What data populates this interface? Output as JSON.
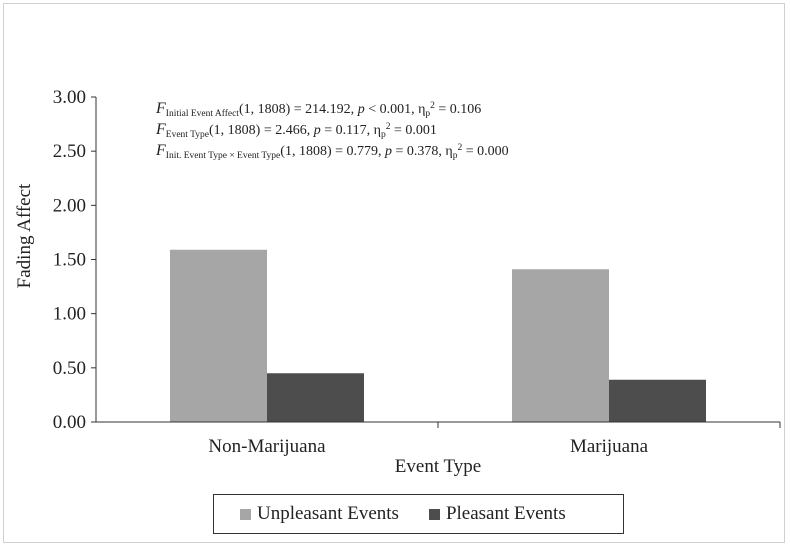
{
  "chart_data": {
    "type": "bar",
    "ylabel": "Fading Affect",
    "xlabel": "Event Type",
    "ylim": [
      0,
      3
    ],
    "yticks": [
      "0.00",
      "0.50",
      "1.00",
      "1.50",
      "2.00",
      "2.50",
      "3.00"
    ],
    "ytick_values": [
      0,
      0.5,
      1,
      1.5,
      2,
      2.5,
      3
    ],
    "categories": [
      "Non-Marijuana",
      "Marijuana"
    ],
    "series": [
      {
        "name": "Unpleasant Events",
        "values": [
          1.59,
          1.41
        ],
        "color": "#a6a6a6"
      },
      {
        "name": "Pleasant Events",
        "values": [
          0.45,
          0.39
        ],
        "color": "#4d4d4d"
      }
    ],
    "grid": false,
    "legend": "bottom",
    "annotations": [
      {
        "f": "F",
        "sub": "Initial Event Affect",
        "text": "(1, 1808) = 214.192, ",
        "p": "p",
        "ptext": " < 0.001, η",
        "psub": "p",
        "sup": "2",
        "end": " = 0.106"
      },
      {
        "f": "F",
        "sub": "Event Type",
        "text": "(1, 1808) = 2.466, ",
        "p": "p",
        "ptext": " = 0.117, η",
        "psub": "p",
        "sup": "2",
        "end": " = 0.001"
      },
      {
        "f": "F",
        "sub": "Init. Event Type × Event Type",
        "text": "(1, 1808) =  0.779, ",
        "p": "p",
        "ptext": " = 0.378, η",
        "psub": "p",
        "sup": "2",
        "end": " = 0.000"
      }
    ]
  }
}
